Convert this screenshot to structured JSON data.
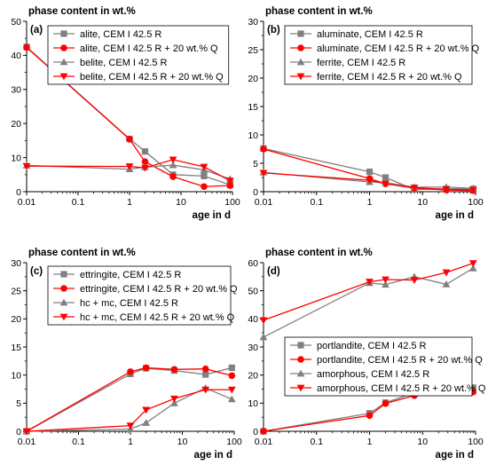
{
  "chart_data": [
    {
      "type": "line",
      "panel_label": "(a)",
      "title": "phase content in wt.%",
      "xlabel": "age in d",
      "ylabel": "",
      "xscale": "log",
      "xlim": [
        0.01,
        100
      ],
      "ylim": [
        0,
        50
      ],
      "xticks": [
        0.01,
        0.1,
        1,
        10,
        100
      ],
      "xtick_labels": [
        "0.01",
        "0.1",
        "1",
        "10",
        "100"
      ],
      "yticks": [
        0,
        10,
        20,
        30,
        40,
        50
      ],
      "ytick_labels": [
        "0",
        "10",
        "20",
        "30",
        "40",
        "50"
      ],
      "legend_position": "top",
      "series": [
        {
          "name": "alite, CEM I 42.5 R",
          "color": "#808080",
          "marker": "square",
          "x": [
            0.01,
            1,
            2,
            7,
            28,
            90
          ],
          "y": [
            42.5,
            15.5,
            11.8,
            5.0,
            4.6,
            2.0
          ]
        },
        {
          "name": "alite, CEM I 42.5 R + 20 wt.% Q",
          "color": "#ff0000",
          "marker": "circle",
          "x": [
            0.01,
            1,
            2,
            7,
            28,
            90
          ],
          "y": [
            42.3,
            15.4,
            8.8,
            4.4,
            1.5,
            1.8
          ]
        },
        {
          "name": "belite, CEM I 42.5 R",
          "color": "#808080",
          "marker": "triangle-up",
          "x": [
            0.01,
            1,
            2,
            7,
            28,
            90
          ],
          "y": [
            7.7,
            6.6,
            7.2,
            7.8,
            6.4,
            3.7
          ]
        },
        {
          "name": "belite, CEM I 42.5 R + 20 wt.% Q",
          "color": "#ff0000",
          "marker": "triangle-down",
          "x": [
            0.01,
            1,
            2,
            7,
            28,
            90
          ],
          "y": [
            7.5,
            7.4,
            7.0,
            9.4,
            7.3,
            3.2
          ]
        }
      ]
    },
    {
      "type": "line",
      "panel_label": "(b)",
      "title": "phase content in wt.%",
      "xlabel": "age in d",
      "ylabel": "",
      "xscale": "log",
      "xlim": [
        0.01,
        100
      ],
      "ylim": [
        0,
        30
      ],
      "xticks": [
        0.01,
        0.1,
        1,
        10,
        100
      ],
      "xtick_labels": [
        "0.01",
        "0.1",
        "1",
        "10",
        "100"
      ],
      "yticks": [
        0,
        5,
        10,
        15,
        20,
        25,
        30
      ],
      "ytick_labels": [
        "0",
        "5",
        "10",
        "15",
        "20",
        "25",
        "30"
      ],
      "legend_position": "top",
      "series": [
        {
          "name": "aluminate, CEM I 42.5 R",
          "color": "#808080",
          "marker": "square",
          "x": [
            0.01,
            1,
            2,
            7,
            28,
            90
          ],
          "y": [
            7.6,
            3.5,
            2.5,
            0.4,
            0.5,
            0.5
          ]
        },
        {
          "name": "aluminate, CEM I 42.5 R + 20 wt.% Q",
          "color": "#ff0000",
          "marker": "circle",
          "x": [
            0.01,
            1,
            2,
            7,
            28,
            90
          ],
          "y": [
            7.5,
            2.3,
            1.4,
            0.6,
            0.3,
            0.2
          ]
        },
        {
          "name": "ferrite, CEM I 42.5 R",
          "color": "#808080",
          "marker": "triangle-up",
          "x": [
            0.01,
            1,
            2,
            7,
            28,
            90
          ],
          "y": [
            3.4,
            1.7,
            1.6,
            0.8,
            0.8,
            0.6
          ]
        },
        {
          "name": "ferrite, CEM I 42.5 R + 20 wt.% Q",
          "color": "#ff0000",
          "marker": "triangle-down",
          "x": [
            0.01,
            1,
            2,
            7,
            28,
            90
          ],
          "y": [
            3.3,
            2.0,
            1.4,
            0.7,
            0.4,
            0.3
          ]
        }
      ]
    },
    {
      "type": "line",
      "panel_label": "(c)",
      "title": "phase content in wt.%",
      "xlabel": "age in d",
      "ylabel": "",
      "xscale": "log",
      "xlim": [
        0.01,
        100
      ],
      "ylim": [
        0,
        30
      ],
      "xticks": [
        0.01,
        0.1,
        1,
        10,
        100
      ],
      "xtick_labels": [
        "0.01",
        "0.1",
        "1",
        "10",
        "100"
      ],
      "yticks": [
        0,
        5,
        10,
        15,
        20,
        25,
        30
      ],
      "ytick_labels": [
        "0",
        "5",
        "10",
        "15",
        "20",
        "25",
        "30"
      ],
      "legend_position": "top",
      "series": [
        {
          "name": "ettringite, CEM I 42.5 R",
          "color": "#808080",
          "marker": "square",
          "x": [
            0.01,
            1,
            2,
            7,
            28,
            90
          ],
          "y": [
            0.0,
            10.2,
            11.2,
            10.8,
            10.1,
            11.3
          ]
        },
        {
          "name": "ettringite, CEM I 42.5 R + 20 wt.% Q",
          "color": "#ff0000",
          "marker": "circle",
          "x": [
            0.01,
            1,
            2,
            7,
            28,
            90
          ],
          "y": [
            0.0,
            10.6,
            11.3,
            11.0,
            11.1,
            9.9
          ]
        },
        {
          "name": "hc + mc, CEM I 42.5 R",
          "color": "#808080",
          "marker": "triangle-up",
          "x": [
            0.01,
            1,
            2,
            7,
            28,
            90
          ],
          "y": [
            0.0,
            0.4,
            1.5,
            5.0,
            7.7,
            5.7
          ]
        },
        {
          "name": "hc + mc, CEM I 42.5 R + 20 wt.% Q",
          "color": "#ff0000",
          "marker": "triangle-down",
          "x": [
            0.01,
            1,
            2,
            7,
            28,
            90
          ],
          "y": [
            0.0,
            1.0,
            3.8,
            5.8,
            7.4,
            7.4
          ]
        }
      ]
    },
    {
      "type": "line",
      "panel_label": "(d)",
      "title": "phase content in wt.%",
      "xlabel": "age in d",
      "ylabel": "",
      "xscale": "log",
      "xlim": [
        0.01,
        100
      ],
      "ylim": [
        0,
        60
      ],
      "xticks": [
        0.01,
        0.1,
        1,
        10,
        100
      ],
      "xtick_labels": [
        "0.01",
        "0.1",
        "1",
        "10",
        "100"
      ],
      "yticks": [
        0,
        10,
        20,
        30,
        40,
        50,
        60
      ],
      "ytick_labels": [
        "0",
        "10",
        "20",
        "30",
        "40",
        "50",
        "60"
      ],
      "legend_position": "middle",
      "series": [
        {
          "name": "portlandite, CEM I 42.5 R",
          "color": "#808080",
          "marker": "square",
          "x": [
            0.01,
            1,
            2,
            7,
            28,
            90
          ],
          "y": [
            0.0,
            6.4,
            10.2,
            13.7,
            14.8,
            15.5
          ]
        },
        {
          "name": "portlandite, CEM I 42.5 R + 20 wt.% Q",
          "color": "#ff0000",
          "marker": "circle",
          "x": [
            0.01,
            1,
            2,
            7,
            28,
            90
          ],
          "y": [
            0.0,
            5.6,
            9.9,
            12.7,
            14.2,
            14.0
          ]
        },
        {
          "name": "amorphous, CEM I 42.5 R",
          "color": "#808080",
          "marker": "triangle-up",
          "x": [
            0.01,
            1,
            2,
            7,
            28,
            90
          ],
          "y": [
            33.5,
            52.8,
            52.2,
            55.0,
            52.3,
            58.0
          ]
        },
        {
          "name": "amorphous, CEM I 42.5 R + 20 wt.% Q",
          "color": "#ff0000",
          "marker": "triangle-down",
          "x": [
            0.01,
            1,
            2,
            7,
            28,
            90
          ],
          "y": [
            39.5,
            53.2,
            54.0,
            53.8,
            56.5,
            59.8
          ]
        }
      ]
    }
  ]
}
